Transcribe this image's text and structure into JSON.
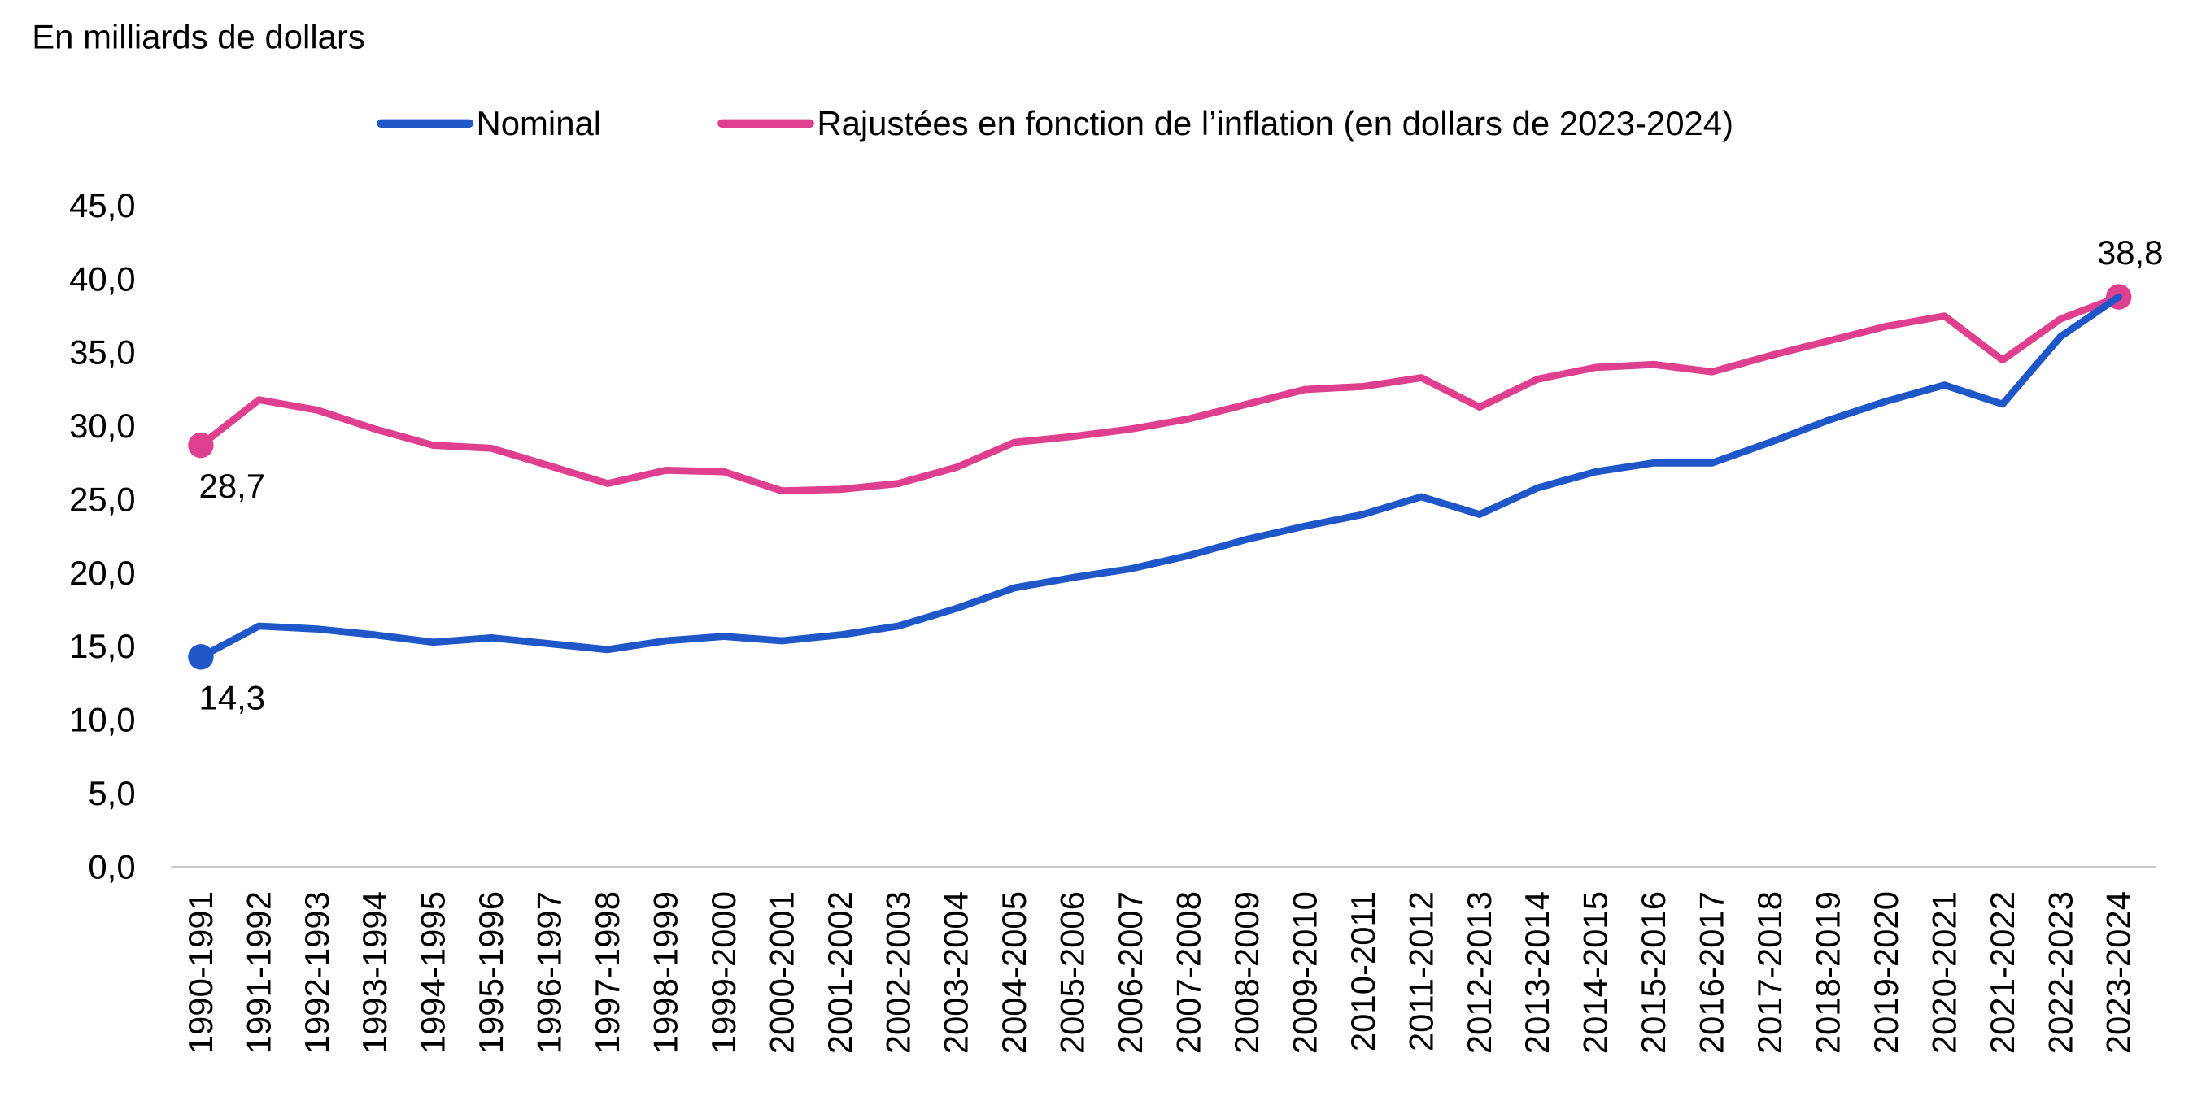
{
  "chart_data": {
    "type": "line",
    "title": "",
    "ylabel": "En milliards de dollars",
    "xlabel": "",
    "ylim": [
      0,
      45
    ],
    "yticks": [
      0,
      5,
      10,
      15,
      20,
      25,
      30,
      35,
      40,
      45
    ],
    "ytick_labels": [
      "0,0",
      "5,0",
      "10,0",
      "15,0",
      "20,0",
      "25,0",
      "30,0",
      "35,0",
      "40,0",
      "45,0"
    ],
    "grid": false,
    "legend_position": "top-center",
    "categories": [
      "1990-1991",
      "1991-1992",
      "1992-1993",
      "1993-1994",
      "1994-1995",
      "1995-1996",
      "1996-1997",
      "1997-1998",
      "1998-1999",
      "1999-2000",
      "2000-2001",
      "2001-2002",
      "2002-2003",
      "2003-2004",
      "2004-2005",
      "2005-2006",
      "2006-2007",
      "2007-2008",
      "2008-2009",
      "2009-2010",
      "2010-2011",
      "2011-2012",
      "2012-2013",
      "2013-2014",
      "2014-2015",
      "2015-2016",
      "2016-2017",
      "2017-2018",
      "2018-2019",
      "2019-2020",
      "2020-2021",
      "2021-2022",
      "2022-2023",
      "2023-2024"
    ],
    "series": [
      {
        "name": "Nominal",
        "color": "#1f57c8",
        "values": [
          14.3,
          16.4,
          16.2,
          15.8,
          15.3,
          15.6,
          15.2,
          14.8,
          15.4,
          15.7,
          15.4,
          15.8,
          16.4,
          17.6,
          19.0,
          19.7,
          20.3,
          21.2,
          22.3,
          23.2,
          24.0,
          25.2,
          24.0,
          25.8,
          26.9,
          27.5,
          27.5,
          28.9,
          30.4,
          31.7,
          32.8,
          31.5,
          36.1,
          38.8
        ],
        "labeled_points": [
          {
            "index": 0,
            "text": "14,3",
            "placement": "below"
          }
        ]
      },
      {
        "name": "Rajustées en fonction de l’inflation (en dollars de 2023-2024)",
        "color": "#de3f8e",
        "values": [
          28.7,
          31.8,
          31.1,
          29.8,
          28.7,
          28.5,
          27.3,
          26.1,
          27.0,
          26.9,
          25.6,
          25.7,
          26.1,
          27.2,
          28.9,
          29.3,
          29.8,
          30.5,
          31.5,
          32.5,
          32.7,
          33.3,
          31.3,
          33.2,
          34.0,
          34.2,
          33.7,
          34.8,
          35.8,
          36.8,
          37.5,
          34.5,
          37.3,
          38.8
        ],
        "labeled_points": [
          {
            "index": 0,
            "text": "28,7",
            "placement": "below"
          },
          {
            "index": 33,
            "text": "38,8",
            "placement": "above"
          }
        ]
      }
    ]
  }
}
